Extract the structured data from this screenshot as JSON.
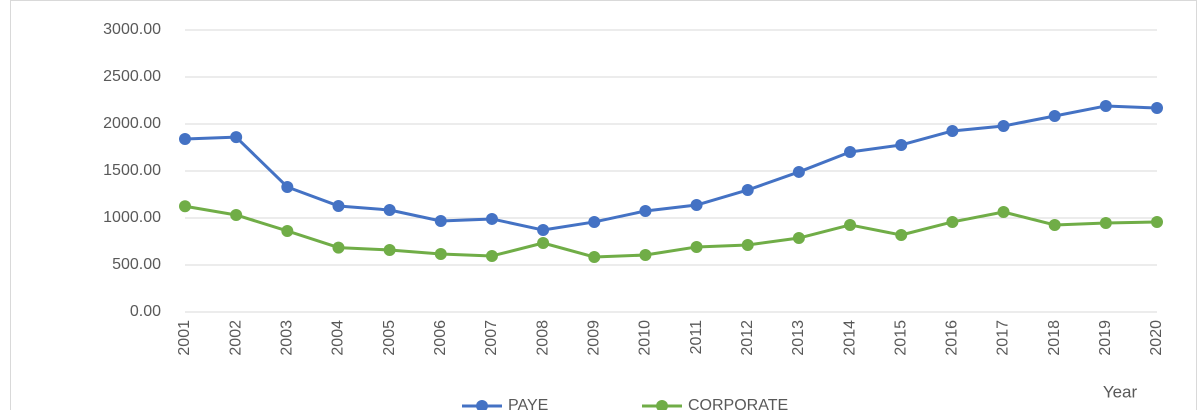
{
  "chart_data": {
    "type": "line",
    "x_label": "Year",
    "categories": [
      "2001",
      "2002",
      "2003",
      "2004",
      "2005",
      "2006",
      "2007",
      "2008",
      "2009",
      "2010",
      "2011",
      "2012",
      "2013",
      "2014",
      "2015",
      "2016",
      "2017",
      "2018",
      "2019",
      "2020"
    ],
    "series": [
      {
        "name": "PAYE",
        "color": "#4472c4",
        "values": [
          1840,
          1860,
          1330,
          1128,
          1085,
          968,
          990,
          872,
          958,
          1075,
          1138,
          1298,
          1490,
          1702,
          1777,
          1926,
          1979,
          2085,
          2192,
          2170
        ]
      },
      {
        "name": "CORPORATE",
        "color": "#70ad47",
        "values": [
          1125,
          1032,
          862,
          685,
          660,
          617,
          596,
          734,
          585,
          606,
          692,
          713,
          787,
          926,
          819,
          958,
          1064,
          926,
          947,
          958
        ]
      }
    ],
    "ylim": [
      0,
      3000
    ],
    "yticks": [
      {
        "value": 0,
        "label": "0.00"
      },
      {
        "value": 500,
        "label": "500.00"
      },
      {
        "value": 1000,
        "label": "1000.00"
      },
      {
        "value": 1500,
        "label": "1500.00"
      },
      {
        "value": 2000,
        "label": "2000.00"
      },
      {
        "value": 2500,
        "label": "2500.00"
      },
      {
        "value": 3000,
        "label": "3000.00"
      }
    ],
    "grid": true,
    "legend": "bottom"
  }
}
